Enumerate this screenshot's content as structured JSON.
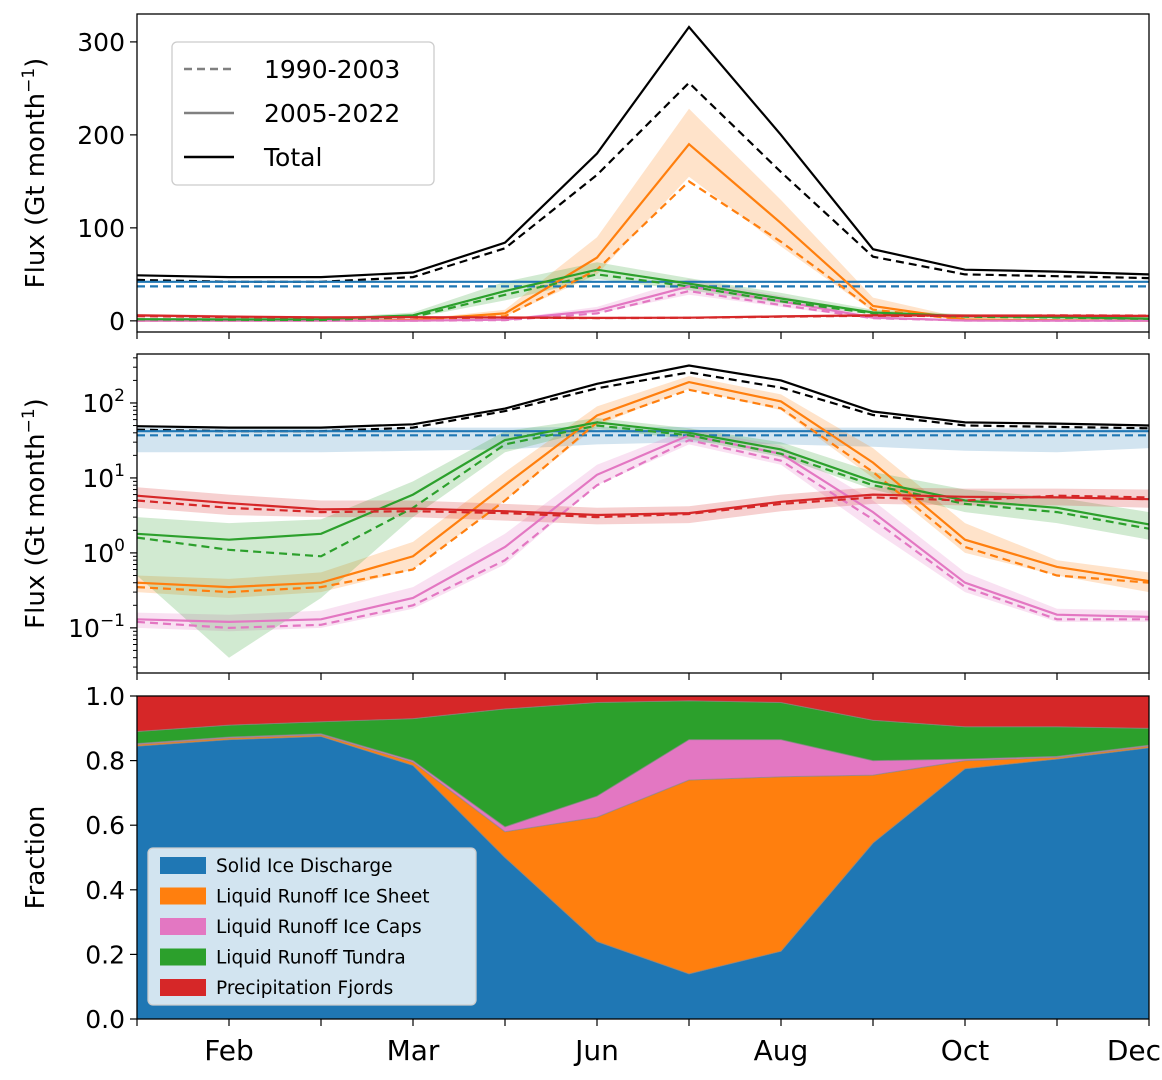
{
  "chart_data": [
    {
      "type": "line",
      "panel": "linear",
      "ylabel": "Flux (Gt month",
      "ylabel_sup": "−1",
      "ylabel_close": ")",
      "xlim": [
        1,
        12
      ],
      "ylim": [
        -12,
        330
      ],
      "yticks": [
        0,
        100,
        200,
        300
      ],
      "ytick_labels": [
        "0",
        "100",
        "200",
        "300"
      ],
      "legend": {
        "position": "upper-left",
        "entries": [
          {
            "label": "1990-2003",
            "color": "#808080",
            "dashed": true
          },
          {
            "label": "2005-2022",
            "color": "#808080",
            "dashed": false
          },
          {
            "label": "Total",
            "color": "#000000",
            "dashed": false
          }
        ]
      },
      "series": [
        {
          "key": "total",
          "color": "#000000",
          "period": "2005-2022",
          "values": [
            49,
            47,
            47,
            52,
            84,
            180,
            316,
            200,
            77,
            55,
            53,
            50
          ]
        },
        {
          "key": "total",
          "color": "#000000",
          "period": "1990-2003",
          "values": [
            44,
            42,
            42,
            47,
            78,
            157,
            256,
            160,
            69,
            50,
            48,
            46
          ]
        },
        {
          "key": "solid_ice",
          "color": "#1f77b4",
          "period": "2005-2022",
          "values": [
            42,
            42,
            42,
            42,
            42,
            42,
            42,
            42,
            42,
            42,
            42,
            42
          ]
        },
        {
          "key": "solid_ice",
          "color": "#1f77b4",
          "period": "1990-2003",
          "values": [
            37,
            37,
            37,
            37,
            37,
            37,
            37,
            37,
            37,
            37,
            37,
            37
          ]
        },
        {
          "key": "ice_sheet",
          "color": "#ff7f0e",
          "period": "2005-2022",
          "band": [
            [
              0.3,
              0.5
            ],
            [
              0.25,
              0.45
            ],
            [
              0.3,
              0.55
            ],
            [
              0.6,
              1.4
            ],
            [
              5,
              12
            ],
            [
              50,
              90
            ],
            [
              155,
              228
            ],
            [
              80,
              130
            ],
            [
              10,
              25
            ],
            [
              1,
              2.5
            ],
            [
              0.5,
              0.8
            ],
            [
              0.3,
              0.55
            ]
          ],
          "values": [
            0.4,
            0.35,
            0.4,
            0.9,
            8,
            68,
            190,
            105,
            16,
            1.5,
            0.65,
            0.42
          ]
        },
        {
          "key": "ice_sheet",
          "color": "#ff7f0e",
          "period": "1990-2003",
          "values": [
            0.35,
            0.3,
            0.35,
            0.6,
            5,
            55,
            150,
            85,
            12,
            1.2,
            0.5,
            0.4
          ]
        },
        {
          "key": "ice_caps",
          "color": "#e377c2",
          "period": "2005-2022",
          "band": [
            [
              0.1,
              0.16
            ],
            [
              0.09,
              0.15
            ],
            [
              0.1,
              0.17
            ],
            [
              0.18,
              0.35
            ],
            [
              0.7,
              1.8
            ],
            [
              8,
              15
            ],
            [
              28,
              45
            ],
            [
              15,
              27
            ],
            [
              2,
              5
            ],
            [
              0.3,
              0.55
            ],
            [
              0.12,
              0.18
            ],
            [
              0.12,
              0.17
            ]
          ],
          "values": [
            0.13,
            0.12,
            0.13,
            0.25,
            1.2,
            11,
            37,
            21,
            3.5,
            0.4,
            0.15,
            0.14
          ]
        },
        {
          "key": "ice_caps",
          "color": "#e377c2",
          "period": "1990-2003",
          "values": [
            0.12,
            0.1,
            0.11,
            0.2,
            0.8,
            8,
            32,
            17,
            2.8,
            0.35,
            0.13,
            0.13
          ]
        },
        {
          "key": "tundra",
          "color": "#2ca02c",
          "period": "2005-2022",
          "band": [
            [
              0.5,
              3
            ],
            [
              0.04,
              2.5
            ],
            [
              0.25,
              2.8
            ],
            [
              3,
              9
            ],
            [
              22,
              42
            ],
            [
              45,
              63
            ],
            [
              33,
              46
            ],
            [
              19,
              30
            ],
            [
              7,
              12
            ],
            [
              3.5,
              7
            ],
            [
              2.5,
              5.5
            ],
            [
              1.5,
              3.5
            ]
          ],
          "values": [
            1.8,
            1.5,
            1.8,
            6,
            32,
            55,
            40,
            24,
            9,
            5,
            4,
            2.4
          ]
        },
        {
          "key": "tundra",
          "color": "#2ca02c",
          "period": "1990-2003",
          "values": [
            1.6,
            1.1,
            0.9,
            4,
            28,
            50,
            37,
            21,
            8,
            4.5,
            3.5,
            2.1
          ]
        },
        {
          "key": "precip",
          "color": "#d62728",
          "period": "2005-2022",
          "band": [
            [
              4,
              7.5
            ],
            [
              3.2,
              6
            ],
            [
              3,
              5
            ],
            [
              3,
              5
            ],
            [
              2.7,
              4.5
            ],
            [
              2.4,
              4
            ],
            [
              2.5,
              4.2
            ],
            [
              3.6,
              6
            ],
            [
              4.5,
              7.5
            ],
            [
              4.3,
              7.2
            ],
            [
              4.3,
              7.2
            ],
            [
              4,
              7
            ]
          ],
          "values": [
            5.8,
            4.6,
            3.8,
            3.9,
            3.6,
            3.2,
            3.4,
            4.8,
            6.0,
            5.6,
            5.5,
            5.2
          ]
        },
        {
          "key": "precip",
          "color": "#d62728",
          "period": "1990-2003",
          "values": [
            5.0,
            4.0,
            3.5,
            3.6,
            3.4,
            3.0,
            3.3,
            4.5,
            5.5,
            5.0,
            5.8,
            5.5
          ]
        }
      ]
    },
    {
      "type": "line",
      "panel": "log",
      "yscale": "log",
      "ylabel": "Flux (Gt month",
      "ylabel_sup": "−1",
      "ylabel_close": ")",
      "xlim": [
        1,
        12
      ],
      "ylim": [
        0.025,
        450
      ],
      "yticks": [
        0.1,
        1,
        10,
        100
      ],
      "ytick_labels": [
        {
          "base": "10",
          "exp": "−1"
        },
        {
          "base": "10",
          "exp": "0"
        },
        {
          "base": "10",
          "exp": "1"
        },
        {
          "base": "10",
          "exp": "2"
        }
      ],
      "solid_ice_band": [
        [
          22,
          47
        ],
        [
          22,
          47
        ],
        [
          22,
          46
        ],
        [
          23,
          47
        ],
        [
          24,
          47
        ],
        [
          28,
          48
        ],
        [
          30,
          48
        ],
        [
          28,
          47
        ],
        [
          26,
          47
        ],
        [
          23,
          46
        ],
        [
          22,
          46
        ],
        [
          25,
          47
        ]
      ]
    },
    {
      "type": "area",
      "panel": "fraction",
      "stacked": true,
      "ylabel": "Fraction",
      "xlim": [
        1,
        12
      ],
      "ylim": [
        0,
        1
      ],
      "yticks": [
        0,
        0.2,
        0.4,
        0.6,
        0.8,
        1.0
      ],
      "ytick_labels": [
        "0.0",
        "0.2",
        "0.4",
        "0.6",
        "0.8",
        "1.0"
      ],
      "xtick_positions": [
        2,
        4,
        6,
        8,
        10,
        12
      ],
      "xtick_labels": [
        "Feb",
        "Mar",
        "Jun",
        "Aug",
        "Oct",
        "Dec"
      ],
      "legend": {
        "position": "lower-left",
        "entries": [
          {
            "label": "Solid Ice Discharge",
            "color": "#1f77b4"
          },
          {
            "label": "Liquid Runoff Ice Sheet",
            "color": "#ff7f0e"
          },
          {
            "label": "Liquid Runoff Ice Caps",
            "color": "#e377c2"
          },
          {
            "label": "Liquid Runoff Tundra",
            "color": "#2ca02c"
          },
          {
            "label": "Precipitation Fjords",
            "color": "#d62728"
          }
        ]
      },
      "series": [
        {
          "name": "Solid Ice Discharge",
          "color": "#1f77b4",
          "values": [
            0.845,
            0.865,
            0.875,
            0.785,
            0.5,
            0.24,
            0.14,
            0.21,
            0.545,
            0.775,
            0.805,
            0.84
          ]
        },
        {
          "name": "Liquid Runoff Ice Sheet",
          "color": "#ff7f0e",
          "values": [
            0.005,
            0.005,
            0.005,
            0.01,
            0.08,
            0.385,
            0.6,
            0.54,
            0.21,
            0.025,
            0.005,
            0.005
          ]
        },
        {
          "name": "Liquid Runoff Ice Caps",
          "color": "#e377c2",
          "values": [
            0.003,
            0.003,
            0.003,
            0.005,
            0.015,
            0.065,
            0.125,
            0.115,
            0.045,
            0.005,
            0.003,
            0.003
          ]
        },
        {
          "name": "Liquid Runoff Tundra",
          "color": "#2ca02c",
          "values": [
            0.037,
            0.037,
            0.037,
            0.13,
            0.365,
            0.29,
            0.12,
            0.115,
            0.125,
            0.1,
            0.092,
            0.052
          ]
        },
        {
          "name": "Precipitation Fjords",
          "color": "#d62728",
          "values": [
            0.11,
            0.09,
            0.08,
            0.07,
            0.04,
            0.02,
            0.015,
            0.02,
            0.075,
            0.095,
            0.095,
            0.1
          ]
        }
      ]
    }
  ]
}
